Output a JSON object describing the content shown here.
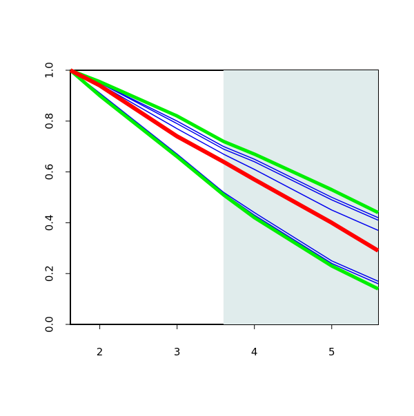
{
  "chart_data": {
    "type": "line",
    "x": [
      1.62,
      2,
      3,
      3.6,
      4,
      5,
      5.6
    ],
    "xlim": [
      1.62,
      5.6
    ],
    "ylim": [
      0,
      1
    ],
    "xticks": [
      2,
      3,
      4,
      5
    ],
    "yticks": [
      {
        "value": 0,
        "label": "0.0"
      },
      0.2,
      0.4,
      0.6,
      0.8,
      {
        "value": 1,
        "label": "1.0"
      }
    ],
    "shaded_region": {
      "x": [
        3.6,
        5.6
      ],
      "color": "#e0ecec"
    },
    "series": [
      {
        "color": "#0000ee",
        "width": 1.5,
        "values": [
          1.0,
          0.95,
          0.8,
          0.7,
          0.65,
          0.5,
          0.42
        ]
      },
      {
        "color": "#0000ee",
        "width": 1.5,
        "values": [
          1.0,
          0.95,
          0.79,
          0.69,
          0.64,
          0.49,
          0.41
        ]
      },
      {
        "color": "#0000ee",
        "width": 1.5,
        "values": [
          1.0,
          0.945,
          0.77,
          0.67,
          0.61,
          0.45,
          0.37
        ]
      },
      {
        "color": "#0000ee",
        "width": 1.5,
        "values": [
          1.0,
          0.91,
          0.67,
          0.52,
          0.44,
          0.25,
          0.17
        ]
      },
      {
        "color": "#0000ee",
        "width": 1.5,
        "values": [
          1.0,
          0.905,
          0.665,
          0.515,
          0.43,
          0.24,
          0.16
        ]
      },
      {
        "color": "#00ee00",
        "width": 5,
        "values": [
          1.0,
          0.955,
          0.82,
          0.72,
          0.67,
          0.53,
          0.44
        ]
      },
      {
        "color": "#00ee00",
        "width": 5,
        "values": [
          1.0,
          0.9,
          0.66,
          0.51,
          0.42,
          0.23,
          0.14
        ]
      },
      {
        "color": "#ff0000",
        "width": 6,
        "values": [
          1.0,
          0.94,
          0.74,
          0.64,
          0.57,
          0.4,
          0.29
        ]
      }
    ]
  }
}
